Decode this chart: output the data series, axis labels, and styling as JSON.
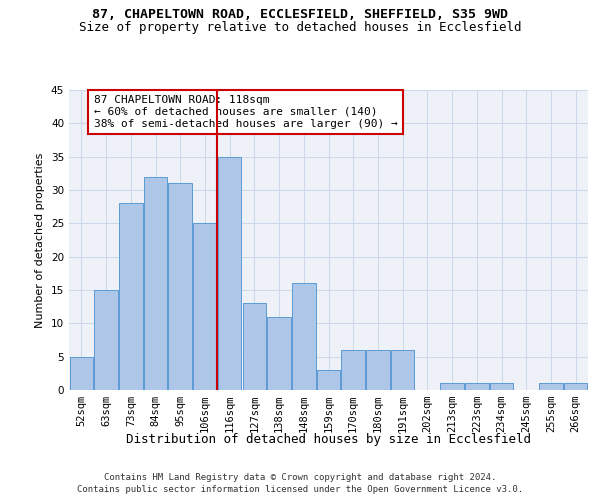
{
  "title": "87, CHAPELTOWN ROAD, ECCLESFIELD, SHEFFIELD, S35 9WD",
  "subtitle": "Size of property relative to detached houses in Ecclesfield",
  "xlabel": "Distribution of detached houses by size in Ecclesfield",
  "ylabel": "Number of detached properties",
  "categories": [
    "52sqm",
    "63sqm",
    "73sqm",
    "84sqm",
    "95sqm",
    "106sqm",
    "116sqm",
    "127sqm",
    "138sqm",
    "148sqm",
    "159sqm",
    "170sqm",
    "180sqm",
    "191sqm",
    "202sqm",
    "213sqm",
    "223sqm",
    "234sqm",
    "245sqm",
    "255sqm",
    "266sqm"
  ],
  "values": [
    5,
    15,
    28,
    32,
    31,
    25,
    35,
    13,
    11,
    16,
    3,
    6,
    6,
    6,
    0,
    1,
    1,
    1,
    0,
    1,
    1
  ],
  "bar_color": "#aec6e8",
  "bar_edge_color": "#5b9bd5",
  "grid_color": "#cdd8ea",
  "background_color": "#eef2f8",
  "vline_color": "#cc0000",
  "vline_index": 6,
  "annotation_text": "87 CHAPELTOWN ROAD: 118sqm\n← 60% of detached houses are smaller (140)\n38% of semi-detached houses are larger (90) →",
  "annotation_box_color": "#cc0000",
  "ylim": [
    0,
    45
  ],
  "yticks": [
    0,
    5,
    10,
    15,
    20,
    25,
    30,
    35,
    40,
    45
  ],
  "footer_line1": "Contains HM Land Registry data © Crown copyright and database right 2024.",
  "footer_line2": "Contains public sector information licensed under the Open Government Licence v3.0.",
  "title_fontsize": 9.5,
  "subtitle_fontsize": 9,
  "xlabel_fontsize": 9,
  "ylabel_fontsize": 8,
  "tick_fontsize": 7.5,
  "annotation_fontsize": 8,
  "footer_fontsize": 6.5
}
